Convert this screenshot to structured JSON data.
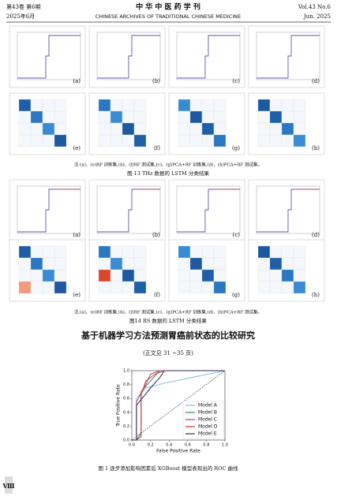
{
  "header": {
    "left_issue": "第43卷 第6期",
    "left_date": "2025年6月",
    "journal_cn": "中 华 中 医 药 学 刊",
    "journal_en": "CHINESE ARCHIVES OF TRADITIONAL CHINESE MEDICINE",
    "right_issue": "Vol.43 No.6",
    "right_date": "Jun. 2025"
  },
  "figures": [
    {
      "panel_labels": [
        "(a)",
        "(b)",
        "(c)",
        "(d)",
        "(e)",
        "(f)",
        "(g)",
        "(h)"
      ],
      "note": "注:(a)、(e)RF 训练集,(b)、(f)RF 测试集,(c)、(g)PCA+RF 训练集,(d)、(h)PCA+RF 测试集。",
      "caption": "图 13 THz 数据的 LSTM 分类结果"
    },
    {
      "panel_labels": [
        "(a)",
        "(b)",
        "(c)",
        "(d)",
        "(e)",
        "(f)",
        "(g)",
        "(h)"
      ],
      "note": "注:(a)、(e)RF 训练集,(b)、(f)RF 测试集,(c)、(g)PCA+RF 训练集,(d)、(h)PCA+RF 测试集。",
      "caption": "图14 RS 数据的 LSTM 分类结果"
    }
  ],
  "article": {
    "title": "基于机器学习方法预测胃癌前状态的比较研究",
    "subtitle": "(正文见 31 ~35 页)"
  },
  "chart_data": {
    "type": "line",
    "x_label": "False Positive Rate",
    "y_label": "True Positive Rate",
    "xlim": [
      0,
      1
    ],
    "ylim": [
      0,
      1
    ],
    "xticks": [
      {
        "value": 0,
        "label": "0.0"
      },
      {
        "value": 0.2,
        "label": "0.2"
      },
      {
        "value": 0.4,
        "label": "0.4"
      },
      {
        "value": 0.6,
        "label": "0.6"
      },
      {
        "value": 0.8,
        "label": "0.8"
      },
      {
        "value": 1,
        "label": "1.0"
      }
    ],
    "yticks": [
      {
        "value": 0,
        "label": "0.0"
      },
      {
        "value": 0.2,
        "label": "0.2"
      },
      {
        "value": 0.4,
        "label": "0.4"
      },
      {
        "value": 0.6,
        "label": "0.6"
      },
      {
        "value": 0.8,
        "label": "0.8"
      },
      {
        "value": 1,
        "label": "1.0"
      }
    ],
    "series": [
      {
        "name": "Model A",
        "color": "#7fc4d8",
        "x": [
          0,
          0.05,
          0.05,
          0.15,
          0.35,
          1
        ],
        "y": [
          0,
          0,
          0.6,
          0.75,
          0.82,
          1
        ]
      },
      {
        "name": "Model B",
        "color": "#2f8f5b",
        "x": [
          0,
          0.05,
          0.1,
          0.1,
          0.2,
          0.3,
          1
        ],
        "y": [
          0,
          0,
          0.1,
          0.7,
          0.85,
          1,
          1
        ]
      },
      {
        "name": "Model C",
        "color": "#b03a8a",
        "x": [
          0,
          0.05,
          0.05,
          0.15,
          0.2,
          0.3,
          1
        ],
        "y": [
          0,
          0,
          0.55,
          0.8,
          0.95,
          1,
          1
        ]
      },
      {
        "name": "Model D",
        "color": "#c0392b",
        "x": [
          0,
          0.05,
          0.1,
          0.1,
          0.15,
          0.25,
          0.35,
          1
        ],
        "y": [
          0,
          0,
          0.05,
          0.65,
          0.85,
          0.95,
          1,
          1
        ]
      },
      {
        "name": "Model E",
        "color": "#2b2b55",
        "x": [
          0,
          0.05,
          0.05,
          0.2,
          0.3,
          0.35,
          1
        ],
        "y": [
          0,
          0,
          0.5,
          0.75,
          0.9,
          1,
          1
        ]
      }
    ],
    "caption": "图 1 逐步添加影响因素后 XGBoost 模型表现出的 ROC 曲线"
  },
  "page_number": "Ⅷ"
}
